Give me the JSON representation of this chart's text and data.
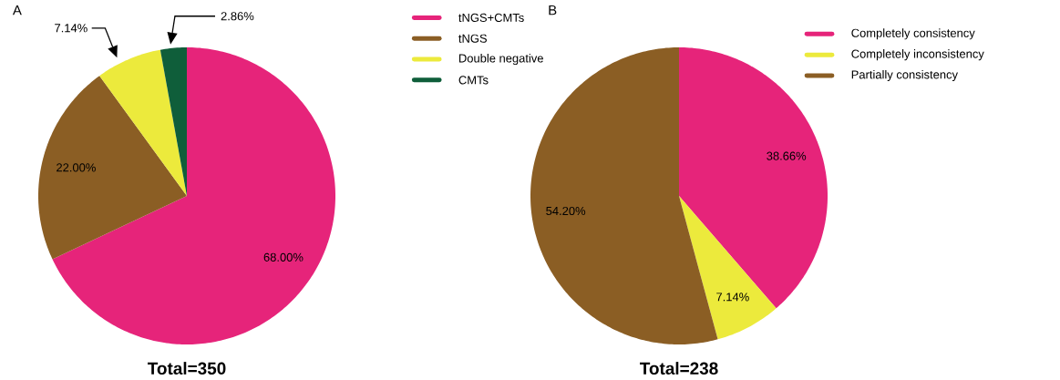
{
  "chart_data": [
    {
      "type": "pie",
      "title": "A",
      "categories": [
        "tNGS+CMTs",
        "tNGS",
        "Double negative",
        "CMTs"
      ],
      "values": [
        68.0,
        22.0,
        7.14,
        2.86
      ],
      "colors": [
        "#e6247a",
        "#8b5e24",
        "#ecea3c",
        "#0f5e3a"
      ],
      "value_labels": [
        "68.00%",
        "22.00%",
        "7.14%",
        "2.86%"
      ],
      "legend": "top right",
      "annotations": [
        "Total=350"
      ]
    },
    {
      "type": "pie",
      "title": "B",
      "categories": [
        "Completely consistency",
        "Completely inconsistency",
        "Partially consistency"
      ],
      "values": [
        38.66,
        7.14,
        54.2
      ],
      "colors": [
        "#e6247a",
        "#ecea3c",
        "#8b5e24"
      ],
      "value_labels": [
        "38.66%",
        "7.14%",
        "54.20%"
      ],
      "legend": "top right",
      "annotations": [
        "Total=238"
      ]
    }
  ]
}
